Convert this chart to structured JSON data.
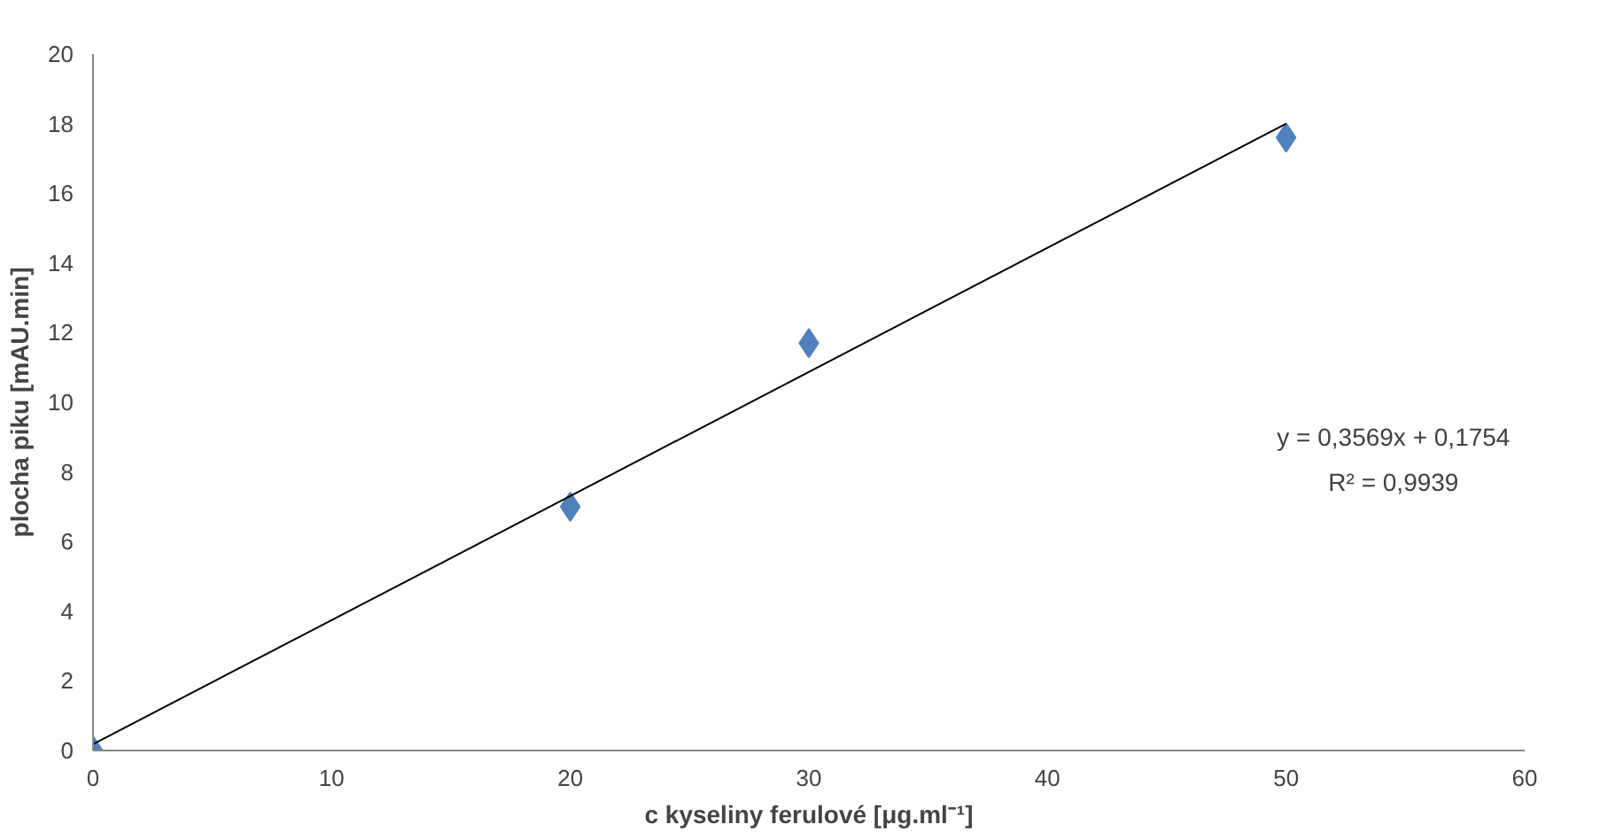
{
  "chart_data": {
    "type": "scatter",
    "xlabel": "c kyseliny ferulové [μg.ml⁻¹]",
    "ylabel": "plocha piku [mAU.min]",
    "xlim": [
      0,
      60
    ],
    "xticks": [
      0,
      10,
      20,
      30,
      40,
      50,
      60
    ],
    "ylim": [
      0,
      20
    ],
    "yticks": [
      0,
      2,
      4,
      6,
      8,
      10,
      12,
      14,
      16,
      18,
      20
    ],
    "grid": false,
    "series": [
      {
        "color": "#4f81bd",
        "x": [
          0,
          20,
          30,
          50
        ],
        "values": [
          0,
          7.0,
          11.7,
          17.6
        ],
        "marker": "diamond"
      },
      {
        "type": "line",
        "color": "#000000",
        "x": [
          0,
          50
        ],
        "values": [
          0.18,
          18.0
        ]
      }
    ],
    "annotations": [
      "y = 0,3569x + 0,1754",
      "R² = 0,9939"
    ]
  }
}
